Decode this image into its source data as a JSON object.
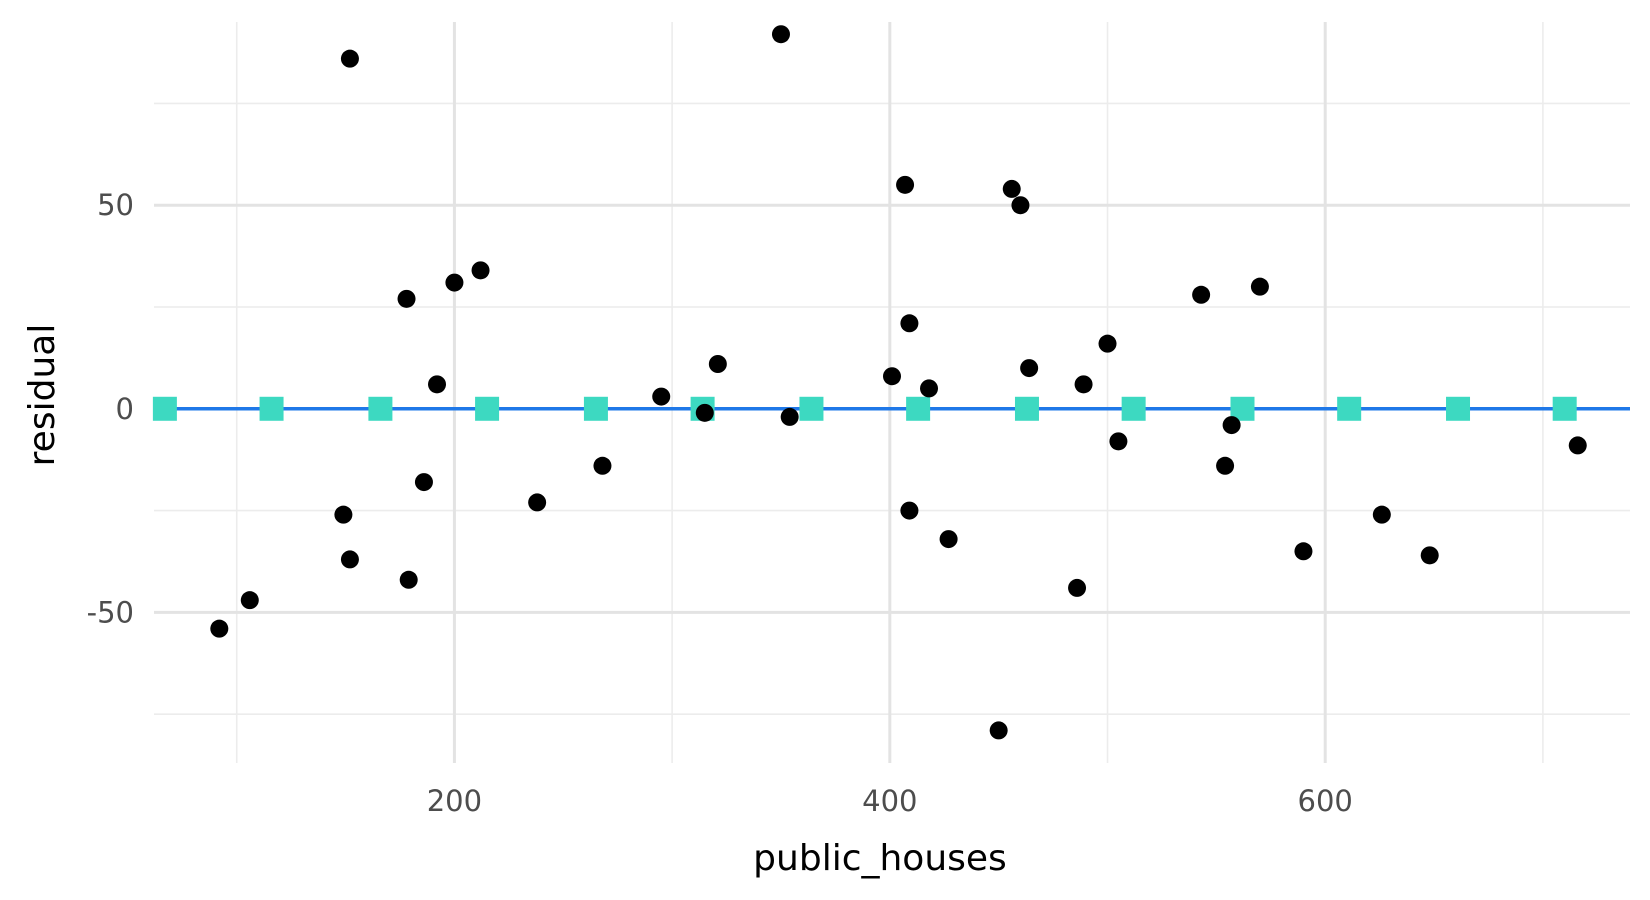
{
  "chart_data": {
    "type": "scatter",
    "title": "",
    "xlabel": "public_houses",
    "ylabel": "residual",
    "xlim": [
      62,
      740
    ],
    "ylim": [
      -87,
      95
    ],
    "x_major_ticks": [
      200,
      400,
      600
    ],
    "x_major_tick_labels": [
      "200",
      "400",
      "600"
    ],
    "x_minor_ticks": [
      100,
      300,
      500,
      700
    ],
    "y_major_ticks": [
      -50,
      0,
      50
    ],
    "y_major_tick_labels": [
      "-50",
      "0",
      "50"
    ],
    "y_minor_ticks": [
      -75,
      -25,
      25,
      75
    ],
    "grid": true,
    "legend": "none",
    "colors": {
      "points": "#000000",
      "reference_line": "#1f78e8",
      "square_markers": "#3dd9c1",
      "grid_major": "#e3e3e3",
      "grid_minor": "#ececec"
    },
    "reference_line_y": 0,
    "points": [
      {
        "x": 92,
        "y": -54
      },
      {
        "x": 106,
        "y": -47
      },
      {
        "x": 149,
        "y": -26
      },
      {
        "x": 152,
        "y": 86
      },
      {
        "x": 152,
        "y": -37
      },
      {
        "x": 178,
        "y": 27
      },
      {
        "x": 179,
        "y": -42
      },
      {
        "x": 186,
        "y": -18
      },
      {
        "x": 192,
        "y": 6
      },
      {
        "x": 200,
        "y": 31
      },
      {
        "x": 212,
        "y": 34
      },
      {
        "x": 238,
        "y": -23
      },
      {
        "x": 268,
        "y": -14
      },
      {
        "x": 295,
        "y": 3
      },
      {
        "x": 315,
        "y": -1
      },
      {
        "x": 321,
        "y": 11
      },
      {
        "x": 350,
        "y": 92
      },
      {
        "x": 354,
        "y": -2
      },
      {
        "x": 401,
        "y": 8
      },
      {
        "x": 407,
        "y": 55
      },
      {
        "x": 409,
        "y": 21
      },
      {
        "x": 409,
        "y": -25
      },
      {
        "x": 418,
        "y": 5
      },
      {
        "x": 427,
        "y": -32
      },
      {
        "x": 450,
        "y": -79
      },
      {
        "x": 456,
        "y": 54
      },
      {
        "x": 460,
        "y": 50
      },
      {
        "x": 464,
        "y": 10
      },
      {
        "x": 486,
        "y": -44
      },
      {
        "x": 489,
        "y": 6
      },
      {
        "x": 500,
        "y": 16
      },
      {
        "x": 505,
        "y": -8
      },
      {
        "x": 543,
        "y": 28
      },
      {
        "x": 554,
        "y": -14
      },
      {
        "x": 557,
        "y": -4
      },
      {
        "x": 570,
        "y": 30
      },
      {
        "x": 590,
        "y": -35
      },
      {
        "x": 626,
        "y": -26
      },
      {
        "x": 648,
        "y": -36
      },
      {
        "x": 716,
        "y": -9
      }
    ],
    "square_markers_y": 0,
    "square_markers_x": [
      67,
      116,
      166,
      215,
      265,
      314,
      364,
      413,
      463,
      512,
      562,
      611,
      661,
      710
    ]
  }
}
